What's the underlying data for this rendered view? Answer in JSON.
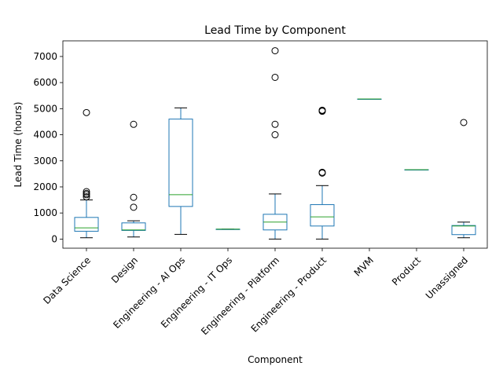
{
  "chart_data": {
    "type": "box",
    "title": "Lead Time by Component",
    "xlabel": "Component",
    "ylabel": "Lead Time (hours)",
    "ylim": [
      -350,
      7600
    ],
    "yticks": [
      0,
      1000,
      2000,
      3000,
      4000,
      5000,
      6000,
      7000
    ],
    "grid": false,
    "colors": {
      "box": "#1f77b4",
      "median": "#2ca02c",
      "whisker": "#1f77b4",
      "cap": "#000000",
      "flier": "#000000"
    },
    "categories": [
      "Data Science",
      "Design",
      "Engineering - AI Ops",
      "Engineering - IT Ops",
      "Engineering - Platform",
      "Engineering - Product",
      "MVM",
      "Product",
      "Unassigned"
    ],
    "boxes": [
      {
        "label": "Data Science",
        "whislo": 50,
        "q1": 300,
        "med": 430,
        "q3": 830,
        "whishi": 1500,
        "fliers": [
          1620,
          1700,
          1750,
          1820,
          4850
        ]
      },
      {
        "label": "Design",
        "whislo": 80,
        "q1": 330,
        "med": 350,
        "q3": 620,
        "whishi": 700,
        "fliers": [
          1220,
          1600,
          4400
        ]
      },
      {
        "label": "Engineering - AI Ops",
        "whislo": 180,
        "q1": 1250,
        "med": 1700,
        "q3": 4600,
        "whishi": 5030,
        "fliers": []
      },
      {
        "label": "Engineering - IT Ops",
        "whislo": 380,
        "q1": 380,
        "med": 380,
        "q3": 380,
        "whishi": 380,
        "fliers": []
      },
      {
        "label": "Engineering - Platform",
        "whislo": 0,
        "q1": 350,
        "med": 650,
        "q3": 950,
        "whishi": 1730,
        "fliers": [
          4000,
          4400,
          6200,
          7220
        ]
      },
      {
        "label": "Engineering - Product",
        "whislo": 0,
        "q1": 500,
        "med": 850,
        "q3": 1320,
        "whishi": 2050,
        "fliers": [
          2530,
          2560,
          4900,
          4920,
          4940
        ]
      },
      {
        "label": "MVM",
        "whislo": 5370,
        "q1": 5370,
        "med": 5370,
        "q3": 5370,
        "whishi": 5370,
        "fliers": []
      },
      {
        "label": "Product",
        "whislo": 2660,
        "q1": 2660,
        "med": 2660,
        "q3": 2660,
        "whishi": 2660,
        "fliers": []
      },
      {
        "label": "Unassigned",
        "whislo": 50,
        "q1": 170,
        "med": 500,
        "q3": 520,
        "whishi": 650,
        "fliers": [
          4470
        ]
      }
    ]
  }
}
